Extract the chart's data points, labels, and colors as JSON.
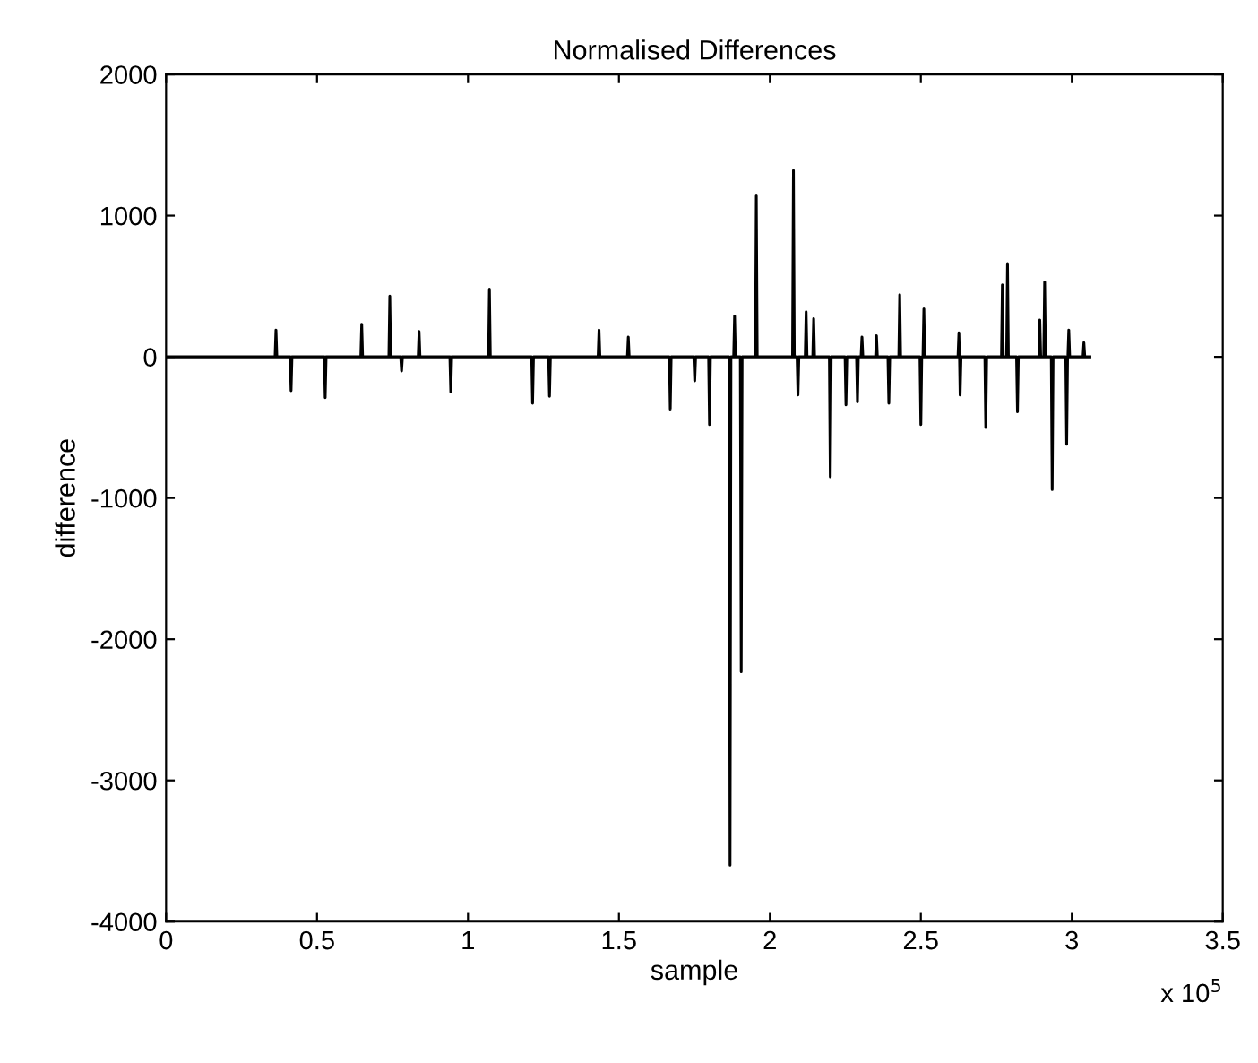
{
  "chart_data": {
    "type": "line",
    "title": "Normalised Differences",
    "xlabel": "sample",
    "ylabel": "difference",
    "annotations": [
      "x 10$^{5}$"
    ],
    "xlim": [
      0,
      3.5
    ],
    "ylim": [
      -4000,
      2000
    ],
    "xticks": [
      0,
      0.5,
      1,
      1.5,
      2,
      2.5,
      3,
      3.5
    ],
    "yticks": [
      -4000,
      -3000,
      -2000,
      -1000,
      0,
      1000,
      2000
    ],
    "grid": false,
    "marker": "none",
    "line_style": "solid",
    "series": [
      {
        "color": "#000000",
        "x": [
          0,
          0.361,
          0.364,
          0.367,
          0.411,
          0.414,
          0.417,
          0.524,
          0.527,
          0.53,
          0.645,
          0.648,
          0.651,
          0.738,
          0.741,
          0.744,
          0.777,
          0.78,
          0.783,
          0.835,
          0.838,
          0.841,
          0.94,
          0.943,
          0.946,
          1.068,
          1.071,
          1.074,
          1.211,
          1.214,
          1.217,
          1.267,
          1.27,
          1.273,
          1.431,
          1.434,
          1.437,
          1.528,
          1.531,
          1.534,
          1.667,
          1.67,
          1.673,
          1.748,
          1.751,
          1.754,
          1.797,
          1.8,
          1.803,
          1.865,
          1.868,
          1.871,
          1.88,
          1.883,
          1.886,
          1.902,
          1.905,
          1.908,
          1.952,
          1.955,
          1.958,
          2.075,
          2.078,
          2.081,
          2.09,
          2.093,
          2.096,
          2.117,
          2.12,
          2.123,
          2.142,
          2.145,
          2.148,
          2.197,
          2.2,
          2.203,
          2.249,
          2.252,
          2.255,
          2.287,
          2.29,
          2.293,
          2.302,
          2.305,
          2.308,
          2.35,
          2.353,
          2.356,
          2.391,
          2.394,
          2.397,
          2.427,
          2.43,
          2.433,
          2.497,
          2.5,
          2.503,
          2.507,
          2.51,
          2.513,
          2.623,
          2.626,
          2.628,
          2.63,
          2.633,
          2.712,
          2.715,
          2.718,
          2.767,
          2.77,
          2.773,
          2.784,
          2.787,
          2.79,
          2.817,
          2.82,
          2.823,
          2.891,
          2.894,
          2.897,
          2.907,
          2.91,
          2.913,
          2.932,
          2.935,
          2.938,
          2.98,
          2.983,
          2.986,
          2.987,
          2.99,
          2.993,
          3.037,
          3.04,
          3.043,
          3.06
        ],
        "values": [
          0,
          0,
          190,
          0,
          0,
          -240,
          0,
          0,
          -290,
          0,
          0,
          230,
          0,
          0,
          430,
          0,
          0,
          -100,
          0,
          0,
          180,
          0,
          0,
          -250,
          0,
          0,
          480,
          0,
          0,
          -330,
          0,
          0,
          -280,
          0,
          0,
          190,
          0,
          0,
          140,
          0,
          0,
          -370,
          0,
          0,
          -170,
          0,
          0,
          -480,
          0,
          0,
          -3600,
          0,
          0,
          290,
          0,
          0,
          -2230,
          0,
          0,
          1140,
          0,
          0,
          1320,
          0,
          0,
          -270,
          0,
          0,
          320,
          0,
          0,
          270,
          0,
          0,
          -850,
          0,
          0,
          -340,
          0,
          0,
          -320,
          0,
          0,
          140,
          0,
          0,
          150,
          0,
          0,
          -330,
          0,
          0,
          440,
          0,
          0,
          -480,
          0,
          0,
          340,
          0,
          0,
          170,
          0,
          -270,
          0,
          0,
          -500,
          0,
          0,
          510,
          0,
          0,
          660,
          0,
          0,
          -390,
          0,
          0,
          260,
          0,
          0,
          530,
          0,
          0,
          -940,
          0,
          0,
          -620,
          0,
          0,
          190,
          0,
          0,
          100,
          0,
          0
        ]
      }
    ]
  }
}
